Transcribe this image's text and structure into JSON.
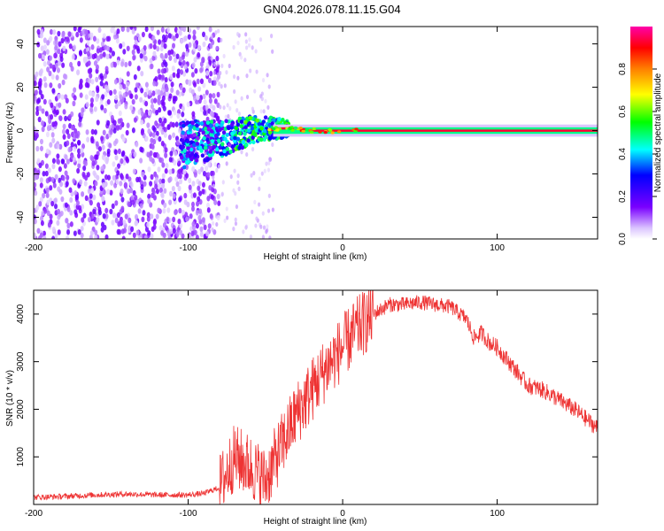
{
  "title": "GN04.2026.078.11.15.G04",
  "colors": {
    "trace": "#ee3333",
    "frame": "#000000",
    "background": "#ffffff"
  },
  "chart_data": [
    {
      "type": "heatmap",
      "title": "GN04.2026.078.11.15.G04",
      "xlabel": "Height of straight line (km)",
      "ylabel": "Frequency (Hz)",
      "xlim": [
        -200,
        165
      ],
      "ylim": [
        -50,
        48
      ],
      "xticks": [
        -200,
        -100,
        0,
        100
      ],
      "xtick_labels": [
        "-200",
        "-100",
        "0",
        "100"
      ],
      "yticks": [
        -40,
        -20,
        0,
        20,
        40
      ],
      "ytick_labels": [
        "-40",
        "-20",
        "0",
        "20",
        "40"
      ],
      "colorbar": {
        "label": "Normalized spectral amplitude",
        "range": [
          0.0,
          1.0
        ],
        "ticks": [
          0.0,
          0.2,
          0.4,
          0.6,
          0.8
        ],
        "tick_labels": [
          "0.0",
          "0.2",
          "0.4",
          "0.6",
          "0.8"
        ],
        "colormap": "rainbow (white-violet-blue-cyan-green-yellow-orange-red-magenta)"
      },
      "features": {
        "noise_region_x": [
          -200,
          -80
        ],
        "ridge_points": [
          {
            "x": -100,
            "y": -6
          },
          {
            "x": -80,
            "y": -4
          },
          {
            "x": -60,
            "y": 0
          },
          {
            "x": -45,
            "y": 1
          },
          {
            "x": -30,
            "y": 1
          },
          {
            "x": -20,
            "y": 0
          },
          {
            "x": 0,
            "y": 0
          },
          {
            "x": 165,
            "y": 0
          }
        ]
      }
    },
    {
      "type": "line",
      "xlabel": "Height of straight line (km)",
      "ylabel": "SNR (10 * v/v)",
      "xlim": [
        -200,
        165
      ],
      "ylim": [
        0,
        4500
      ],
      "xticks": [
        -200,
        -100,
        0,
        100
      ],
      "xtick_labels": [
        "-200",
        "-100",
        "0",
        "100"
      ],
      "yticks": [
        1000,
        2000,
        3000,
        4000
      ],
      "ytick_labels": [
        "1000",
        "2000",
        "3000",
        "4000"
      ],
      "series": [
        {
          "name": "SNR",
          "x": [
            -200,
            -180,
            -160,
            -140,
            -120,
            -100,
            -90,
            -80,
            -70,
            -60,
            -50,
            -40,
            -30,
            -20,
            -10,
            0,
            10,
            20,
            30,
            40,
            50,
            60,
            70,
            80,
            85,
            90,
            95,
            100,
            110,
            120,
            130,
            140,
            150,
            165
          ],
          "values": [
            150,
            170,
            200,
            220,
            200,
            200,
            230,
            350,
            1000,
            800,
            500,
            1200,
            1900,
            2400,
            2900,
            3300,
            3700,
            4000,
            4200,
            4200,
            4250,
            4200,
            4150,
            3900,
            3500,
            3600,
            3400,
            3300,
            2900,
            2500,
            2400,
            2200,
            2000,
            1600
          ]
        }
      ]
    }
  ]
}
